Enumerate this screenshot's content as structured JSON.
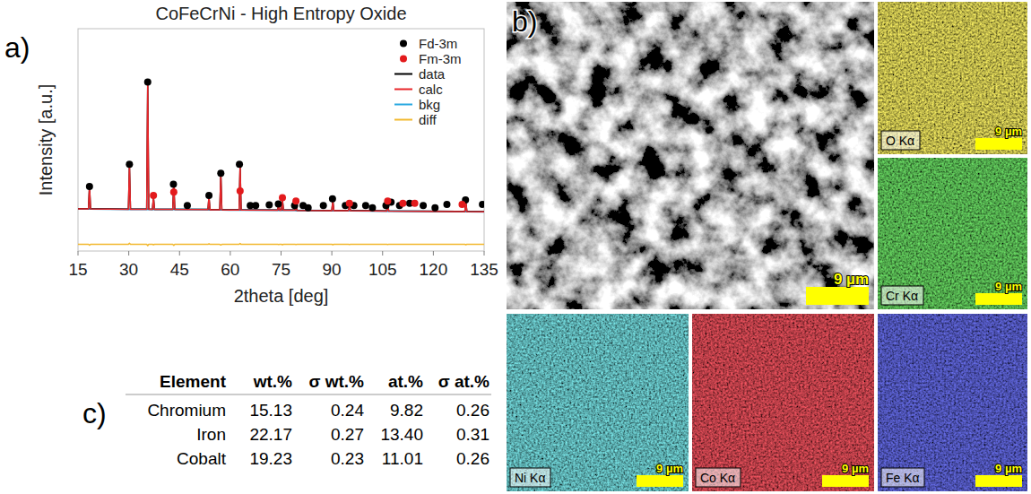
{
  "chart_data": {
    "type": "line",
    "title": "CoFeCrNi - High Entropy Oxide",
    "x_label": "2theta [deg]",
    "y_label": "Intensity [a.u.]",
    "x": [
      15,
      18.1,
      18.4,
      18.7,
      29.9,
      30.2,
      30.5,
      35.3,
      35.6,
      35.9,
      37.0,
      37.3,
      37.6,
      43.0,
      43.3,
      43.6,
      53.4,
      53.7,
      54.0,
      56.9,
      57.2,
      57.5,
      62.6,
      62.9,
      63.2,
      74.0,
      74.3,
      74.6,
      75.1,
      75.4,
      75.7,
      79.1,
      79.4,
      79.7,
      90.0,
      90.3,
      90.6,
      94.9,
      95.2,
      95.5,
      106.2,
      106.5,
      106.8,
      129.3,
      129.6,
      129.9,
      135
    ],
    "series": [
      {
        "name": "Fd-3m",
        "type": "scatter",
        "marker": "circle",
        "color": "#000000",
        "x": [
          18.4,
          30.2,
          35.6,
          43.2,
          47.3,
          53.7,
          57.2,
          62.7,
          65.9,
          67.5,
          71.5,
          74.2,
          79.0,
          81.5,
          83.0,
          87.5,
          90.2,
          94.0,
          96.5,
          100.0,
          102.0,
          106.0,
          107.5,
          110.0,
          113.0,
          117.0,
          120.5,
          124.0,
          129.5,
          134.5
        ],
        "values": [
          29,
          39,
          76,
          30,
          20.5,
          25,
          35,
          39,
          20.5,
          20.5,
          20.8,
          21.2,
          20.5,
          20.5,
          19.5,
          20.5,
          23.5,
          20.5,
          20.5,
          20.5,
          19.5,
          20.5,
          22,
          20.5,
          21.5,
          20.5,
          19.5,
          21,
          23,
          21
        ]
      },
      {
        "name": "Fm-3m",
        "type": "scatter",
        "marker": "circle",
        "color": "#e31a1c",
        "x": [
          37.3,
          43.3,
          62.9,
          75.4,
          79.4,
          95.2,
          106.5,
          111.0,
          114.5,
          128.5
        ],
        "values": [
          25,
          26.5,
          27,
          24,
          22.5,
          21.5,
          22.5,
          21.5,
          21.5,
          21
        ]
      },
      {
        "name": "data",
        "type": "line",
        "color": "#000000",
        "values": [
          19.1,
          19.1,
          29.4,
          19.1,
          18.9,
          38.6,
          18.9,
          18.9,
          76.6,
          18.9,
          18.8,
          24.3,
          18.8,
          18.8,
          30.5,
          18.8,
          18.7,
          24.3,
          18.6,
          18.6,
          34.9,
          18.6,
          18.5,
          38.2,
          18.5,
          18.4,
          21.2,
          18.4,
          18.4,
          23.2,
          18.4,
          18.4,
          21.1,
          18.3,
          18.2,
          22.7,
          18.2,
          18.2,
          20.6,
          18.2,
          18.0,
          21.6,
          18.0,
          17.8,
          22.2,
          17.8,
          17.7
        ]
      },
      {
        "name": "calc",
        "type": "line",
        "color": "#e8262a",
        "values": [
          19.0,
          19.0,
          29,
          19.0,
          18.8,
          39,
          18.8,
          18.8,
          76,
          18.8,
          18.7,
          24,
          18.7,
          18.7,
          30,
          18.7,
          18.6,
          24.5,
          18.5,
          18.5,
          34.5,
          18.5,
          18.4,
          38.5,
          18.4,
          18.3,
          21,
          18.3,
          18.3,
          23,
          18.3,
          18.3,
          21,
          18.2,
          18.1,
          22.5,
          18.1,
          18.1,
          20.5,
          18.1,
          17.9,
          21.5,
          17.9,
          17.7,
          22,
          17.7,
          17.6
        ]
      },
      {
        "name": "bkg",
        "type": "line",
        "color": "#29a9e0",
        "values": [
          19.0,
          19.0,
          19.0,
          19.0,
          18.8,
          18.8,
          18.8,
          18.8,
          18.8,
          18.8,
          18.7,
          18.7,
          18.7,
          18.7,
          18.7,
          18.7,
          18.6,
          18.5,
          18.5,
          18.5,
          18.5,
          18.5,
          18.4,
          18.4,
          18.4,
          18.3,
          18.3,
          18.3,
          18.3,
          18.3,
          18.3,
          18.3,
          18.2,
          18.2,
          18.1,
          18.1,
          18.1,
          18.1,
          18.1,
          18.1,
          17.9,
          17.9,
          17.9,
          17.7,
          17.7,
          17.7,
          17.6
        ]
      },
      {
        "name": "diff",
        "type": "line",
        "color": "#f2b82e",
        "values": [
          3,
          3,
          2.6,
          3,
          3,
          3.5,
          3,
          3,
          2.4,
          3,
          3,
          2.8,
          3,
          3,
          2.5,
          3,
          3,
          3.3,
          3,
          3,
          2.7,
          3,
          3,
          3.4,
          3,
          3,
          2.9,
          3,
          3,
          2.8,
          3,
          3,
          2.9,
          3,
          3,
          2.8,
          3,
          3,
          2.9,
          3,
          3,
          2.9,
          3,
          3,
          2.8,
          3,
          3
        ]
      }
    ],
    "xlim": [
      15,
      135
    ],
    "xticks": [
      15,
      30,
      45,
      60,
      75,
      90,
      105,
      120,
      135
    ],
    "ylim": [
      0,
      100
    ],
    "tick_labels": "x",
    "legend": "upper right",
    "grid": false
  },
  "panels": {
    "a": {
      "label": "a)"
    },
    "b": {
      "label": "b)",
      "scale_bar": "9 µm",
      "maps": [
        {
          "label": "O Kα",
          "color": "#d6c41c"
        },
        {
          "label": "Cr Kα",
          "color": "#22a81e"
        },
        {
          "label": "Ni Kα",
          "color": "#2bb0b4"
        },
        {
          "label": "Co Kα",
          "color": "#c8141a"
        },
        {
          "label": "Fe Kα",
          "color": "#1e22b8"
        }
      ]
    },
    "c": {
      "label": "c)",
      "table": {
        "columns": [
          "Element",
          "wt.%",
          "σ wt.%",
          "at.%",
          "σ at.%"
        ],
        "rows": [
          [
            "Chromium",
            "15.13",
            "0.24",
            "9.82",
            "0.26"
          ],
          [
            "Iron",
            "22.17",
            "0.27",
            "13.40",
            "0.31"
          ],
          [
            "Cobalt",
            "19.23",
            "0.23",
            "11.01",
            "0.26"
          ]
        ]
      }
    }
  }
}
